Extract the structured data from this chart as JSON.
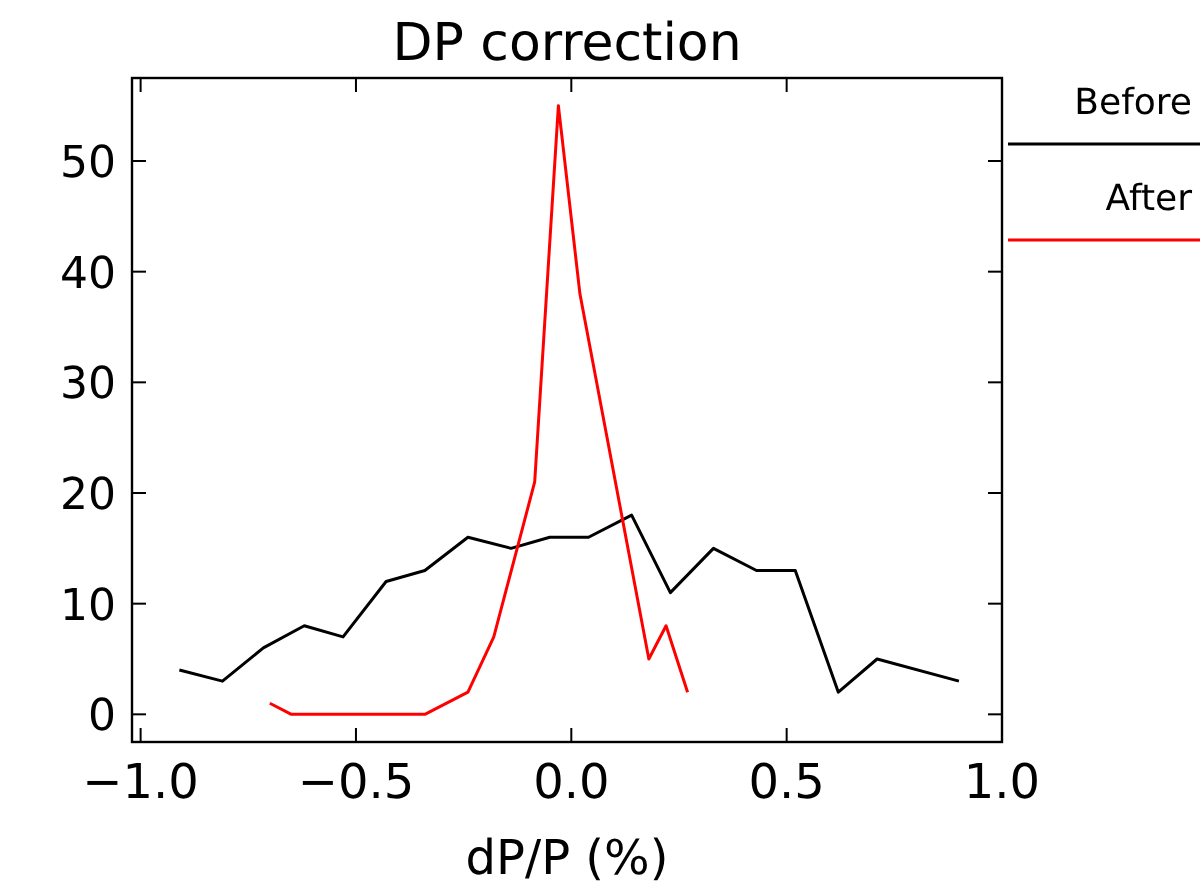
{
  "chart_data": {
    "type": "line",
    "title": "DP  correction",
    "xlabel": "dP/P (%)",
    "xlim": [
      -1.02,
      1.0
    ],
    "ylim": [
      -2.5,
      57.5
    ],
    "xticks": [
      {
        "value": -1,
        "label": "−1.0"
      },
      {
        "value": -0.5,
        "label": "−0.5"
      },
      {
        "value": 0,
        "label": "0.0"
      },
      {
        "value": 0.5,
        "label": "0.5"
      },
      {
        "value": 1,
        "label": "1.0"
      }
    ],
    "yticks": [
      0,
      10,
      20,
      30,
      40,
      50
    ],
    "grid": false,
    "legend": "right",
    "marker": "none",
    "line_style": "solid",
    "series": [
      {
        "name": "Before",
        "color": "#000000",
        "x": [
          -0.91,
          -0.81,
          -0.715,
          -0.62,
          -0.53,
          -0.43,
          -0.34,
          -0.24,
          -0.14,
          -0.05,
          0.04,
          0.14,
          0.23,
          0.33,
          0.43,
          0.52,
          0.62,
          0.71,
          0.9
        ],
        "values": [
          4,
          3,
          6,
          8,
          7,
          12,
          13,
          16,
          15,
          16,
          16,
          18,
          11,
          15,
          13,
          13,
          2,
          5,
          3
        ]
      },
      {
        "name": "After",
        "color": "#ff0000",
        "x": [
          -0.7,
          -0.65,
          -0.34,
          -0.24,
          -0.18,
          -0.085,
          -0.03,
          0.02,
          0.18,
          0.22,
          0.27
        ],
        "values": [
          1,
          0,
          0,
          2,
          7,
          21,
          55,
          38,
          5,
          8,
          2
        ]
      }
    ]
  }
}
